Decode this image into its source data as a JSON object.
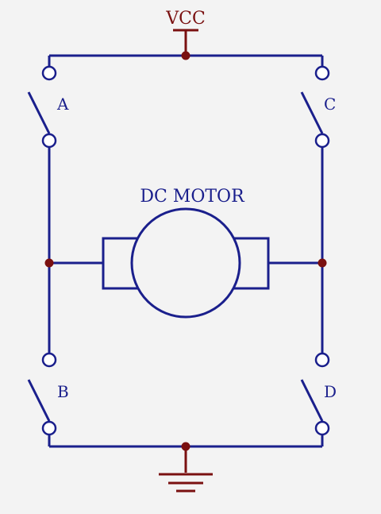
{
  "labels": {
    "vcc": "VCC",
    "motor": "DC MOTOR",
    "switch_a": "A",
    "switch_b": "B",
    "switch_c": "C",
    "switch_d": "D"
  },
  "colors": {
    "background": "#f3f3f3",
    "wire": "#1a1f8c",
    "power": "#7a1010",
    "junction": "#7a1010",
    "terminal_fill": "#ffffff"
  }
}
